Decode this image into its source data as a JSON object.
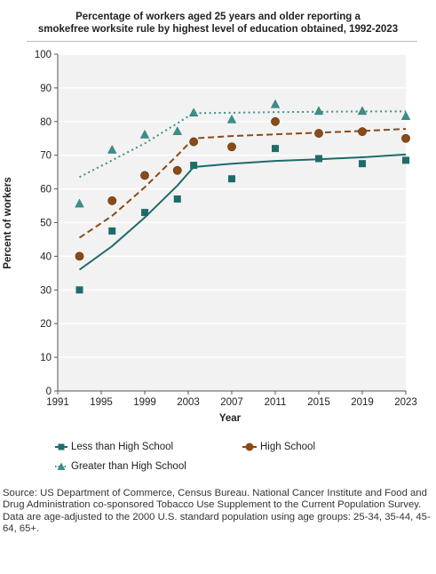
{
  "chart_data": {
    "type": "scatter",
    "title_line1": "Percentage of workers aged 25 years and older reporting a",
    "title_line2": "smokefree worksite rule by highest level of education obtained, 1992-2023",
    "xlabel": "Year",
    "ylabel": "Percent of workers",
    "xlim": [
      1991,
      2023
    ],
    "ylim": [
      0,
      100
    ],
    "xticks": [
      "1991",
      "1995",
      "1999",
      "2003",
      "2007",
      "2011",
      "2015",
      "2019",
      "2023"
    ],
    "yticks": [
      "0",
      "10",
      "20",
      "30",
      "40",
      "50",
      "60",
      "70",
      "80",
      "90",
      "100"
    ],
    "grid": "horizontal",
    "series": [
      {
        "name": "Less than High School",
        "color": "#1f6b6b",
        "marker": "square",
        "line_style": "solid",
        "points": [
          [
            1993,
            30
          ],
          [
            1996,
            47.5
          ],
          [
            1999,
            53
          ],
          [
            2002,
            57
          ],
          [
            2003.5,
            67
          ],
          [
            2007,
            63
          ],
          [
            2011,
            72
          ],
          [
            2015,
            69
          ],
          [
            2019,
            67.5
          ],
          [
            2023,
            68.5
          ]
        ],
        "trend": [
          [
            1993,
            36
          ],
          [
            1996,
            43
          ],
          [
            1999,
            51.5
          ],
          [
            2002,
            61
          ],
          [
            2003.5,
            66.5
          ],
          [
            2007,
            67.5
          ],
          [
            2011,
            68.3
          ],
          [
            2015,
            68.8
          ],
          [
            2019,
            69.4
          ],
          [
            2023,
            70.2
          ]
        ]
      },
      {
        "name": "High School",
        "color": "#8b4a16",
        "marker": "circle",
        "line_style": "dashed",
        "points": [
          [
            1993,
            40
          ],
          [
            1996,
            56.5
          ],
          [
            1999,
            64
          ],
          [
            2002,
            65.5
          ],
          [
            2003.5,
            74
          ],
          [
            2007,
            72.5
          ],
          [
            2011,
            80
          ],
          [
            2015,
            76.5
          ],
          [
            2019,
            77
          ],
          [
            2023,
            75
          ]
        ],
        "trend": [
          [
            1993,
            45.5
          ],
          [
            1996,
            52
          ],
          [
            1999,
            60.5
          ],
          [
            2002,
            70
          ],
          [
            2003.5,
            75
          ],
          [
            2007,
            75.7
          ],
          [
            2011,
            76.2
          ],
          [
            2015,
            76.7
          ],
          [
            2019,
            77.2
          ],
          [
            2023,
            77.8
          ]
        ]
      },
      {
        "name": "Greater than High School",
        "color": "#3a8f8a",
        "marker": "triangle",
        "line_style": "dotted",
        "points": [
          [
            1993,
            55.5
          ],
          [
            1996,
            71.5
          ],
          [
            1999,
            76
          ],
          [
            2002,
            77
          ],
          [
            2003.5,
            82.5
          ],
          [
            2007,
            80.5
          ],
          [
            2011,
            85
          ],
          [
            2015,
            83
          ],
          [
            2019,
            83
          ],
          [
            2023,
            81.5
          ]
        ],
        "trend": [
          [
            1993,
            63.5
          ],
          [
            1996,
            68.5
          ],
          [
            1999,
            73.5
          ],
          [
            2002,
            79.5
          ],
          [
            2003.5,
            82.5
          ],
          [
            2007,
            82.6
          ],
          [
            2011,
            82.8
          ],
          [
            2015,
            82.9
          ],
          [
            2019,
            83
          ],
          [
            2023,
            83
          ]
        ]
      }
    ]
  },
  "legend": {
    "less_hs": "Less than High School",
    "hs": "High School",
    "greater_hs": "Greater than High School"
  },
  "footnote": {
    "source": "Source: US Department of Commerce, Census Bureau. National Cancer Institute and Food and Drug Administration co-sponsored Tobacco Use Supplement to the Current Population Survey.",
    "note": "Data are age-adjusted to the 2000 U.S. standard population using age groups: 25-34, 35-44, 45-64, 65+."
  }
}
